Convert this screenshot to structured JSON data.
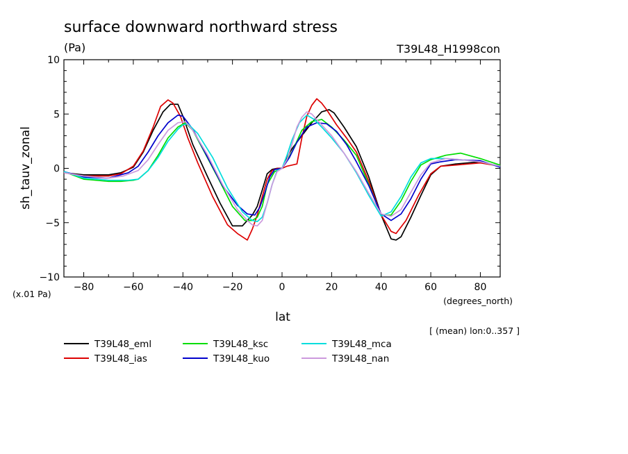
{
  "title": "surface downward northward stress",
  "units": "(Pa)",
  "run_label": "T39L48_H1998con",
  "scale_note": "(x.01 Pa)",
  "x_units": "(degrees_north)",
  "mean_note": "[ (mean) lon:0..357 ]",
  "chart_data": {
    "type": "line",
    "title": "surface downward northward stress",
    "xlabel": "lat",
    "ylabel": "sh_tauv_zonal",
    "xlim": [
      -88,
      88
    ],
    "ylim": [
      -10,
      10
    ],
    "x_ticks": [
      -80,
      -60,
      -40,
      -20,
      0,
      20,
      40,
      60,
      80
    ],
    "y_ticks": [
      -10,
      -5,
      0,
      5,
      10
    ],
    "x_tick_labels": [
      "−80",
      "−60",
      "−40",
      "−20",
      "0",
      "20",
      "40",
      "60",
      "80"
    ],
    "y_tick_labels": [
      "−10",
      "−5",
      "0",
      "5",
      "10"
    ],
    "grid": false,
    "legend_position": "bottom",
    "series": [
      {
        "name": "T39L48_eml",
        "color": "#000000",
        "x": [
          -88,
          -80,
          -70,
          -65,
          -60,
          -56,
          -52,
          -48,
          -45,
          -42,
          -40,
          -36,
          -30,
          -25,
          -20,
          -16,
          -14,
          -12,
          -10,
          -8,
          -6,
          -4,
          -2,
          0,
          2,
          4,
          8,
          12,
          16,
          19,
          21,
          25,
          30,
          35,
          40,
          44,
          46,
          48,
          52,
          56,
          60,
          64,
          70,
          80,
          88
        ],
        "y": [
          -0.4,
          -0.6,
          -0.6,
          -0.4,
          0.1,
          1.5,
          3.5,
          5.2,
          5.9,
          5.9,
          4.8,
          2.2,
          -0.8,
          -3.2,
          -5.3,
          -5.3,
          -4.8,
          -4.3,
          -3.5,
          -2.0,
          -0.5,
          -0.1,
          0.0,
          0.0,
          1.0,
          1.8,
          3.0,
          4.2,
          5.2,
          5.4,
          5.1,
          3.8,
          2.0,
          -0.8,
          -4.3,
          -6.5,
          -6.6,
          -6.3,
          -4.5,
          -2.5,
          -0.6,
          0.2,
          0.4,
          0.6,
          0.2
        ]
      },
      {
        "name": "T39L48_ias",
        "color": "#dd0000",
        "x": [
          -88,
          -80,
          -70,
          -65,
          -60,
          -56,
          -52,
          -49,
          -46,
          -44,
          -41,
          -38,
          -34,
          -28,
          -22,
          -18,
          -14,
          -12,
          -10,
          -8,
          -6,
          -4,
          -2,
          0,
          2,
          4,
          6,
          8,
          10,
          12,
          14,
          16,
          18,
          22,
          26,
          30,
          35,
          40,
          44,
          46,
          50,
          55,
          60,
          64,
          70,
          80,
          88
        ],
        "y": [
          -0.4,
          -0.7,
          -0.7,
          -0.5,
          0.2,
          1.6,
          3.8,
          5.7,
          6.3,
          6.0,
          4.8,
          2.8,
          0.5,
          -2.6,
          -5.2,
          -6.0,
          -6.6,
          -5.6,
          -4.3,
          -2.6,
          -1.0,
          -0.2,
          0.0,
          0.0,
          0.2,
          0.3,
          0.4,
          2.8,
          4.8,
          5.8,
          6.4,
          6.0,
          5.4,
          4.0,
          2.8,
          1.5,
          -1.2,
          -4.3,
          -5.8,
          -6.0,
          -4.8,
          -2.5,
          -0.5,
          0.2,
          0.3,
          0.5,
          0.2
        ]
      },
      {
        "name": "T39L48_ksc",
        "color": "#00dd00",
        "x": [
          -88,
          -80,
          -70,
          -65,
          -60,
          -58,
          -54,
          -50,
          -46,
          -42,
          -39,
          -36,
          -32,
          -26,
          -20,
          -15,
          -12,
          -10,
          -8,
          -6,
          -3,
          0,
          4,
          8,
          12,
          16,
          20,
          25,
          30,
          35,
          40,
          44,
          48,
          52,
          56,
          60,
          66,
          72,
          80,
          88
        ],
        "y": [
          -0.3,
          -1.0,
          -1.2,
          -1.2,
          -1.1,
          -1.0,
          -0.2,
          1.2,
          2.8,
          3.8,
          4.2,
          3.5,
          1.8,
          -0.8,
          -3.5,
          -4.8,
          -4.8,
          -4.5,
          -3.5,
          -1.5,
          -0.3,
          0.0,
          1.5,
          3.5,
          4.3,
          4.5,
          3.8,
          2.6,
          1.2,
          -1.5,
          -4.3,
          -4.3,
          -3.0,
          -1.2,
          0.3,
          0.8,
          1.2,
          1.4,
          0.9,
          0.3
        ]
      },
      {
        "name": "T39L48_kuo",
        "color": "#0000cc",
        "x": [
          -88,
          -80,
          -70,
          -62,
          -58,
          -54,
          -50,
          -46,
          -42,
          -40,
          -36,
          -30,
          -24,
          -18,
          -14,
          -11,
          -9,
          -7,
          -5,
          -3,
          0,
          3,
          6,
          10,
          14,
          18,
          22,
          26,
          30,
          35,
          40,
          44,
          48,
          52,
          56,
          60,
          64,
          70,
          80,
          88
        ],
        "y": [
          -0.3,
          -0.8,
          -0.9,
          -0.4,
          0.2,
          1.5,
          3.0,
          4.2,
          4.9,
          4.8,
          3.6,
          1.0,
          -1.6,
          -3.4,
          -4.2,
          -4.3,
          -3.6,
          -2.3,
          -0.8,
          -0.1,
          0.0,
          1.0,
          2.4,
          3.8,
          4.2,
          4.1,
          3.4,
          2.2,
          0.6,
          -1.6,
          -4.2,
          -4.8,
          -4.2,
          -2.8,
          -1.0,
          0.4,
          0.6,
          0.8,
          0.7,
          0.1
        ]
      },
      {
        "name": "T39L48_mca",
        "color": "#00dddd",
        "x": [
          -88,
          -80,
          -70,
          -62,
          -58,
          -54,
          -50,
          -46,
          -42,
          -40,
          -38,
          -34,
          -28,
          -22,
          -16,
          -12,
          -10,
          -8,
          -6,
          -4,
          -2,
          0,
          2,
          4,
          7,
          10,
          13,
          16,
          20,
          25,
          30,
          35,
          40,
          44,
          48,
          52,
          56,
          60,
          66,
          72,
          80,
          88
        ],
        "y": [
          -0.3,
          -0.9,
          -1.1,
          -1.1,
          -1.0,
          -0.2,
          1.0,
          2.5,
          3.6,
          4.0,
          4.1,
          3.2,
          1.0,
          -1.8,
          -4.0,
          -4.8,
          -4.9,
          -4.5,
          -3.2,
          -1.5,
          -0.2,
          0.0,
          1.2,
          2.6,
          4.2,
          4.9,
          4.5,
          3.8,
          2.8,
          1.4,
          -0.4,
          -2.5,
          -4.4,
          -4.0,
          -2.6,
          -0.8,
          0.5,
          0.9,
          0.9,
          0.8,
          0.6,
          0.2
        ]
      },
      {
        "name": "T39L48_nan",
        "color": "#cc99dd",
        "x": [
          -88,
          -80,
          -70,
          -64,
          -58,
          -54,
          -50,
          -46,
          -42,
          -39,
          -36,
          -30,
          -24,
          -18,
          -14,
          -12,
          -10,
          -8,
          -6,
          -4,
          -2,
          0,
          2,
          4,
          6,
          8,
          10,
          12,
          16,
          20,
          25,
          30,
          35,
          40,
          44,
          48,
          52,
          56,
          60,
          66,
          72,
          80,
          88
        ],
        "y": [
          -0.4,
          -0.7,
          -0.9,
          -0.7,
          -0.2,
          0.8,
          2.2,
          3.5,
          4.2,
          4.3,
          3.5,
          1.2,
          -1.5,
          -3.8,
          -4.8,
          -5.2,
          -5.3,
          -4.8,
          -3.2,
          -1.5,
          -0.3,
          0.0,
          0.8,
          2.2,
          3.8,
          4.7,
          5.2,
          5.0,
          4.0,
          3.0,
          1.4,
          -0.3,
          -2.3,
          -4.2,
          -4.4,
          -3.8,
          -2.2,
          -0.6,
          0.5,
          0.9,
          0.8,
          0.6,
          0.2
        ]
      }
    ]
  }
}
